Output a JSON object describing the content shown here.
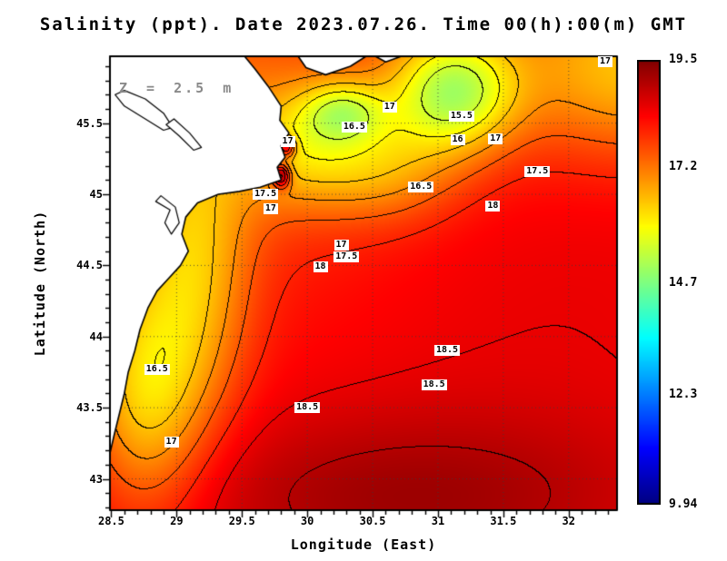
{
  "title": "Salinity (ppt). Date 2023.07.26. Time 00(h):00(m) GMT",
  "annotation": "Z = 2.5 m",
  "axes": {
    "x_label": "Longitude (East)",
    "y_label": "Latitude (North)",
    "x_tick_labels": [
      "28.5",
      "29",
      "29.5",
      "30",
      "30.5",
      "31",
      "31.5",
      "32"
    ],
    "x_tick_values": [
      28.5,
      29,
      29.5,
      30,
      30.5,
      31,
      31.5,
      32
    ],
    "y_tick_labels": [
      "43",
      "43.5",
      "44",
      "44.5",
      "45",
      "45.5"
    ],
    "y_tick_values": [
      43,
      43.5,
      44,
      44.5,
      45,
      45.5
    ]
  },
  "colorbar": {
    "labels": [
      "19.5",
      "17.2",
      "14.7",
      "12.3",
      "9.94"
    ],
    "values": [
      19.5,
      17.2,
      14.7,
      12.3,
      9.94
    ],
    "min": 9.94,
    "max": 19.5,
    "colormap": "jet",
    "top_color": "#8b0000",
    "bottom_color": "#00008b"
  },
  "chart_data": {
    "type": "heatmap",
    "variable": "Salinity",
    "units": "ppt",
    "date": "2023.07.26",
    "time": "00(h):00(m) GMT",
    "depth_label": "Z = 2.5 m",
    "lon_range": [
      28.49,
      32.37
    ],
    "lat_range": [
      42.78,
      45.97
    ],
    "value_range": [
      9.94,
      19.5
    ],
    "contour_interval": 0.5,
    "contour_levels_labeled": [
      15.5,
      16,
      16.5,
      17,
      17.5,
      18,
      18.5
    ],
    "grid_step": 0.5,
    "field": {
      "base": 18.2,
      "gaussians": [
        {
          "x": 31.12,
          "y": 45.72,
          "sx": 0.34,
          "sy": 0.3,
          "a": -2.7
        },
        {
          "x": 30.28,
          "y": 45.58,
          "sx": 0.22,
          "sy": 0.15,
          "a": -1.5
        },
        {
          "x": 30.35,
          "y": 45.35,
          "sx": 0.45,
          "sy": 0.3,
          "a": -0.6
        },
        {
          "x": 30.6,
          "y": 45.15,
          "sx": 0.4,
          "sy": 0.25,
          "a": -0.8
        },
        {
          "x": 29.9,
          "y": 45.35,
          "sx": 0.35,
          "sy": 0.3,
          "a": -1.0
        },
        {
          "x": 29.6,
          "y": 45.6,
          "sx": 1.1,
          "sy": 0.8,
          "a": -0.7
        },
        {
          "x": 32.5,
          "y": 45.9,
          "sx": 0.7,
          "sy": 0.45,
          "a": -1.8
        },
        {
          "x": 29.15,
          "y": 44.5,
          "sx": 0.3,
          "sy": 0.8,
          "a": -1.5
        },
        {
          "x": 28.75,
          "y": 43.6,
          "sx": 0.3,
          "sy": 0.6,
          "a": -1.8
        },
        {
          "x": 31.8,
          "y": 44.2,
          "sx": 1.4,
          "sy": 1.2,
          "a": 0.3
        },
        {
          "x": 30.7,
          "y": 42.85,
          "sx": 1.4,
          "sy": 0.45,
          "a": 0.9
        },
        {
          "x": 29.8,
          "y": 45.13,
          "sx": 0.05,
          "sy": 0.06,
          "a": 2.5
        },
        {
          "x": 29.84,
          "y": 45.33,
          "sx": 0.05,
          "sy": 0.05,
          "a": 2.2
        }
      ]
    },
    "land_polygons": [
      [
        [
          28.49,
          45.97
        ],
        [
          29.52,
          45.97
        ],
        [
          29.6,
          45.88
        ],
        [
          29.7,
          45.76
        ],
        [
          29.8,
          45.62
        ],
        [
          29.79,
          45.52
        ],
        [
          29.86,
          45.43
        ],
        [
          29.8,
          45.34
        ],
        [
          29.83,
          45.26
        ],
        [
          29.77,
          45.19
        ],
        [
          29.8,
          45.1
        ],
        [
          29.64,
          45.05
        ],
        [
          29.48,
          45.02
        ],
        [
          29.32,
          45.0
        ],
        [
          29.16,
          44.94
        ],
        [
          29.07,
          44.84
        ],
        [
          29.04,
          44.72
        ],
        [
          29.09,
          44.6
        ],
        [
          29.03,
          44.5
        ],
        [
          28.94,
          44.41
        ],
        [
          28.85,
          44.32
        ],
        [
          28.78,
          44.2
        ],
        [
          28.72,
          44.05
        ],
        [
          28.68,
          43.9
        ],
        [
          28.63,
          43.75
        ],
        [
          28.6,
          43.6
        ],
        [
          28.56,
          43.45
        ],
        [
          28.52,
          43.3
        ],
        [
          28.49,
          43.18
        ]
      ],
      [
        [
          29.93,
          45.97
        ],
        [
          30.45,
          45.97
        ],
        [
          30.33,
          45.9
        ],
        [
          30.14,
          45.84
        ],
        [
          29.99,
          45.89
        ]
      ],
      [
        [
          30.52,
          45.97
        ],
        [
          30.72,
          45.97
        ],
        [
          30.6,
          45.93
        ]
      ]
    ],
    "lake_polygons": [
      [
        [
          28.6,
          45.73
        ],
        [
          28.76,
          45.67
        ],
        [
          28.9,
          45.57
        ],
        [
          28.97,
          45.47
        ],
        [
          28.9,
          45.45
        ],
        [
          28.76,
          45.53
        ],
        [
          28.6,
          45.62
        ],
        [
          28.53,
          45.7
        ]
      ],
      [
        [
          28.98,
          45.53
        ],
        [
          29.1,
          45.43
        ],
        [
          29.19,
          45.33
        ],
        [
          29.13,
          45.31
        ],
        [
          29.02,
          45.41
        ],
        [
          28.92,
          45.49
        ]
      ],
      [
        [
          28.88,
          44.99
        ],
        [
          28.99,
          44.91
        ],
        [
          29.02,
          44.8
        ],
        [
          28.96,
          44.72
        ],
        [
          28.91,
          44.8
        ],
        [
          28.95,
          44.89
        ],
        [
          28.84,
          44.95
        ]
      ]
    ],
    "contour_labels": [
      {
        "text": "17",
        "lon": 32.28,
        "lat": 45.93
      },
      {
        "text": "17",
        "lon": 30.63,
        "lat": 45.61
      },
      {
        "text": "15.5",
        "lon": 31.18,
        "lat": 45.55
      },
      {
        "text": "16.5",
        "lon": 30.36,
        "lat": 45.47
      },
      {
        "text": "16",
        "lon": 31.15,
        "lat": 45.38
      },
      {
        "text": "17",
        "lon": 31.44,
        "lat": 45.39
      },
      {
        "text": "17",
        "lon": 29.85,
        "lat": 45.37
      },
      {
        "text": "17.5",
        "lon": 31.76,
        "lat": 45.16
      },
      {
        "text": "16.5",
        "lon": 30.87,
        "lat": 45.05
      },
      {
        "text": "17.5",
        "lon": 29.68,
        "lat": 45.0
      },
      {
        "text": "17",
        "lon": 29.72,
        "lat": 44.9
      },
      {
        "text": "18",
        "lon": 31.42,
        "lat": 44.92
      },
      {
        "text": "17",
        "lon": 30.26,
        "lat": 44.64
      },
      {
        "text": "17.5",
        "lon": 30.3,
        "lat": 44.56
      },
      {
        "text": "18",
        "lon": 30.1,
        "lat": 44.49
      },
      {
        "text": "16.5",
        "lon": 28.85,
        "lat": 43.77
      },
      {
        "text": "18.5",
        "lon": 31.07,
        "lat": 43.9
      },
      {
        "text": "18.5",
        "lon": 30.97,
        "lat": 43.66
      },
      {
        "text": "18.5",
        "lon": 30.0,
        "lat": 43.5
      },
      {
        "text": "17",
        "lon": 28.96,
        "lat": 43.26
      }
    ]
  }
}
